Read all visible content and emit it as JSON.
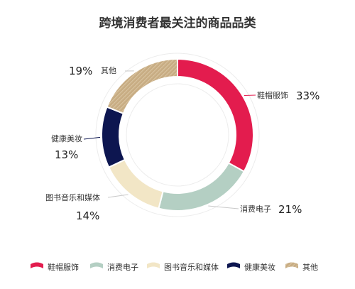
{
  "chart_data": {
    "type": "pie",
    "title": "跨境消费者最关注的商品品类",
    "categories": [
      "鞋帽服饰",
      "消费电子",
      "图书音乐和媒体",
      "健康美妆",
      "其他"
    ],
    "values": [
      33,
      21,
      14,
      13,
      19
    ],
    "percent_labels": [
      "33%",
      "21%",
      "14%",
      "13%",
      "19%"
    ],
    "colors": [
      "#e31c4e",
      "#b4cfc3",
      "#f2e6c6",
      "#0d1650",
      "#c8ad84"
    ],
    "legend": {
      "position": "bottom",
      "items": [
        "鞋帽服饰",
        "消费电子",
        "图书音乐和媒体",
        "健康美妆",
        "其他"
      ]
    }
  }
}
